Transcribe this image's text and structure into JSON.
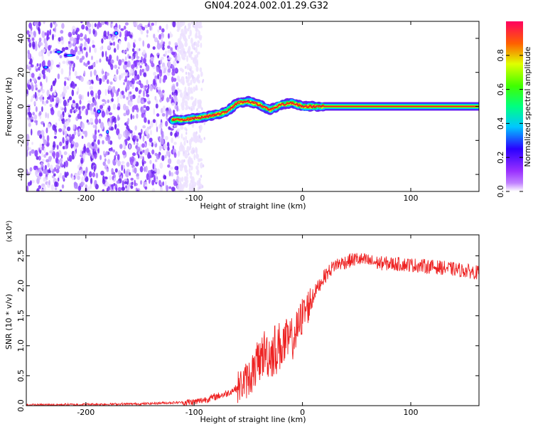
{
  "figure": {
    "title": "GN04.2024.002.01.29.G32"
  },
  "chart_data": [
    {
      "type": "heatmap",
      "xlabel": "Height of straight line (km)",
      "ylabel": "Frequency (Hz)",
      "xlim": [
        -255,
        163
      ],
      "ylim": [
        -50,
        50
      ],
      "xticks": [
        -200,
        -100,
        0,
        100
      ],
      "yticks": [
        -40,
        -20,
        0,
        20,
        40
      ],
      "colorbar": {
        "label": "Normalized spectral amplitude",
        "range": [
          0,
          1
        ],
        "ticks": [
          "0.0",
          "0.2",
          "0.4",
          "0.6",
          "0.8"
        ],
        "colormap": [
          "#ffffff",
          "#9a30ff",
          "#2a00ff",
          "#00e0ff",
          "#00ff40",
          "#c8ff00",
          "#ff8000",
          "#ff0040"
        ]
      },
      "trace": {
        "description_values": "dominant frequency ridge (Hz) vs height (km)",
        "x": [
          -120,
          -110,
          -100,
          -90,
          -80,
          -70,
          -60,
          -50,
          -40,
          -30,
          -20,
          -10,
          0,
          20,
          50,
          100,
          163
        ],
        "y": [
          -8,
          -8,
          -7,
          -6,
          -5,
          -3,
          2,
          3,
          1,
          -2,
          1,
          2,
          0,
          0,
          0,
          0,
          0
        ]
      },
      "noise_region_x": [
        -255,
        -115
      ]
    },
    {
      "type": "line",
      "xlabel": "Height of straight line (km)",
      "ylabel": "SNR (10 * v/v)",
      "scale_note": "(x10⁴)",
      "xlim": [
        -255,
        163
      ],
      "ylim": [
        0,
        2.85
      ],
      "xticks": [
        -200,
        -100,
        0,
        100
      ],
      "yticks": [
        0,
        0.5,
        1.0,
        1.5,
        2.0,
        2.5
      ],
      "ytick_labels": [
        "0.0",
        "0.5",
        "1.0",
        "1.5",
        "2.0",
        "2.5"
      ],
      "color": "#ee2222",
      "x": [
        -255,
        -200,
        -150,
        -120,
        -100,
        -90,
        -80,
        -70,
        -60,
        -50,
        -45,
        -40,
        -35,
        -30,
        -25,
        -20,
        -15,
        -10,
        -5,
        0,
        5,
        10,
        15,
        20,
        30,
        40,
        50,
        70,
        100,
        130,
        163
      ],
      "y": [
        0.01,
        0.02,
        0.03,
        0.05,
        0.06,
        0.1,
        0.15,
        0.2,
        0.3,
        0.45,
        0.6,
        0.75,
        0.9,
        0.85,
        0.95,
        1.0,
        1.05,
        1.1,
        1.25,
        1.5,
        1.65,
        1.85,
        2.0,
        2.15,
        2.35,
        2.4,
        2.45,
        2.38,
        2.35,
        2.3,
        2.22
      ]
    }
  ]
}
